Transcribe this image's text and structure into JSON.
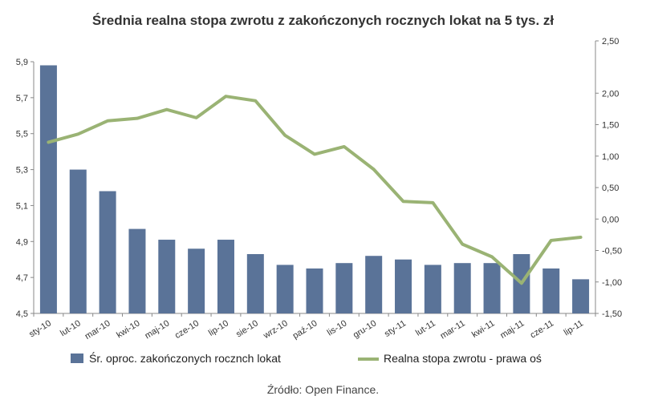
{
  "chart_data": {
    "type": "bar",
    "title": "Średnia realna stopa zwrotu z zakończonych rocznych lokat na 5 tys. zł",
    "categories": [
      "sty-10",
      "lut-10",
      "mar-10",
      "kwi-10",
      "maj-10",
      "cze-10",
      "lip-10",
      "sie-10",
      "wrz-10",
      "paź-10",
      "lis-10",
      "gru-10",
      "sty-11",
      "lut-11",
      "mar-11",
      "kwi-11",
      "maj-11",
      "cze-11",
      "lip-11"
    ],
    "series": [
      {
        "name": "Śr. oproc. zakończonych rocznch lokat",
        "type": "bar",
        "axis": "left",
        "values": [
          5.88,
          5.3,
          5.18,
          4.97,
          4.91,
          4.86,
          4.91,
          4.83,
          4.77,
          4.75,
          4.78,
          4.82,
          4.8,
          4.77,
          4.78,
          4.78,
          4.83,
          4.75,
          4.69
        ]
      },
      {
        "name": "Realna stopa zwrotu - prawa oś",
        "type": "line",
        "axis": "right",
        "values": [
          1.22,
          1.35,
          1.56,
          1.6,
          1.74,
          1.61,
          1.95,
          1.88,
          1.33,
          1.03,
          1.15,
          0.79,
          0.28,
          0.26,
          -0.4,
          -0.6,
          -1.02,
          -0.34,
          -0.29
        ]
      }
    ],
    "ylim": [
      4.5,
      5.9
    ],
    "y_ticks": [
      "4,5",
      "4,7",
      "4,9",
      "5,1",
      "5,3",
      "5,5",
      "5,7",
      "5,9"
    ],
    "y2lim": [
      -1.5,
      2.5
    ],
    "y2_ticks": [
      "-1,50",
      "-1,00",
      "-0,50",
      "0,00",
      "0,50",
      "1,00",
      "1,50",
      "2,00",
      "2,50"
    ],
    "grid": false,
    "legend": "bottom",
    "colors": {
      "bar": "#5a7398",
      "line": "#9ab374",
      "axis": "#888888"
    }
  },
  "source": "Źródło: Open Finance."
}
